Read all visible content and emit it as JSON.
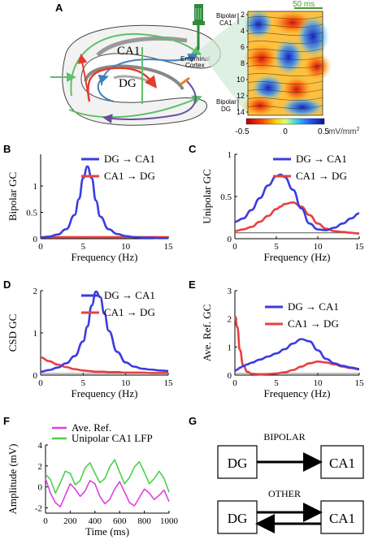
{
  "panels": {
    "A": {
      "letter": "A",
      "scale_bar": "50 ms",
      "label_ca1": "CA1",
      "label_dg": "DG",
      "label_entorhinal_1": "Entorhinal",
      "label_entorhinal_2": "Cortex",
      "label_bipolar_ca1_1": "Bipolar",
      "label_bipolar_ca1_2": "CA1",
      "label_bipolar_dg_1": "Bipolar",
      "label_bipolar_dg_2": "DG",
      "depth_ticks": [
        "2",
        "4",
        "6",
        "8",
        "10",
        "12",
        "14"
      ],
      "colorbar_ticks": [
        "-0.5",
        "0",
        "0.5"
      ],
      "colorbar_unit": "mV/mm",
      "colorbar_unit_sup": "2",
      "colors": {
        "green": "#5fbf6a",
        "blue": "#3f7fbf",
        "red": "#e43b2c",
        "purple": "#6b4e9b"
      }
    },
    "G": {
      "letter": "G",
      "bipolar_title": "BIPOLAR",
      "other_title": "OTHER",
      "box_left": "DG",
      "box_right": "CA1"
    },
    "F": {
      "letter": "F"
    }
  },
  "chart_data": [
    {
      "id": "B",
      "letter": "B",
      "type": "line",
      "title": "",
      "xlabel": "Frequency (Hz)",
      "ylabel": "Bipolar GC",
      "xlim": [
        0,
        15
      ],
      "ylim": [
        0,
        1.6
      ],
      "xticks": [
        "0",
        "5",
        "10",
        "15"
      ],
      "yticks": [
        "0",
        "0.5",
        "1"
      ],
      "x": [
        0,
        1,
        2,
        3,
        4,
        4.5,
        5,
        5.5,
        6,
        6.5,
        7,
        8,
        9,
        10,
        11,
        12,
        13,
        14,
        15
      ],
      "series": [
        {
          "name": "DG → CA1",
          "color": "#3c3ce0",
          "values": [
            0.02,
            0.04,
            0.08,
            0.18,
            0.45,
            0.75,
            1.15,
            1.37,
            1.15,
            0.72,
            0.42,
            0.18,
            0.09,
            0.05,
            0.03,
            0.02,
            0.02,
            0.01,
            0.01
          ]
        },
        {
          "name": "CA1 → DG",
          "color": "#e84040",
          "values": [
            0.03,
            0.03,
            0.03,
            0.03,
            0.03,
            0.03,
            0.03,
            0.03,
            0.03,
            0.03,
            0.03,
            0.03,
            0.03,
            0.03,
            0.03,
            0.03,
            0.03,
            0.03,
            0.03
          ]
        }
      ]
    },
    {
      "id": "C",
      "letter": "C",
      "type": "line",
      "title": "",
      "xlabel": "Frequency (Hz)",
      "ylabel": "Unipolar GC",
      "xlim": [
        0,
        15
      ],
      "ylim": [
        0,
        1
      ],
      "xticks": [
        "0",
        "5",
        "10",
        "15"
      ],
      "yticks": [
        "0",
        "0.5",
        "1"
      ],
      "baseline": 0.07,
      "x": [
        0,
        1,
        2,
        3,
        4,
        5,
        5.5,
        6,
        7,
        8,
        9,
        10,
        11,
        12,
        13,
        14,
        15
      ],
      "series": [
        {
          "name": "DG → CA1",
          "color": "#3c3ce0",
          "values": [
            0.2,
            0.24,
            0.34,
            0.48,
            0.63,
            0.74,
            0.76,
            0.73,
            0.58,
            0.36,
            0.18,
            0.11,
            0.1,
            0.13,
            0.18,
            0.24,
            0.3
          ]
        },
        {
          "name": "CA1 → DG",
          "color": "#e84040",
          "values": [
            0.09,
            0.11,
            0.14,
            0.2,
            0.27,
            0.35,
            0.38,
            0.41,
            0.43,
            0.38,
            0.28,
            0.18,
            0.12,
            0.09,
            0.08,
            0.07,
            0.06
          ]
        }
      ]
    },
    {
      "id": "D",
      "letter": "D",
      "type": "line",
      "title": "",
      "xlabel": "Frequency (Hz)",
      "ylabel": "CSD GC",
      "xlim": [
        0,
        15
      ],
      "ylim": [
        0,
        2
      ],
      "xticks": [
        "0",
        "5",
        "10",
        "15"
      ],
      "yticks": [
        "0",
        "1",
        "2"
      ],
      "x": [
        0,
        1,
        2,
        3,
        4,
        5,
        5.5,
        6,
        6.5,
        7,
        7.5,
        8,
        9,
        10,
        11,
        12,
        13,
        14,
        15
      ],
      "series": [
        {
          "name": "DG → CA1",
          "color": "#3c3ce0",
          "values": [
            0.08,
            0.12,
            0.18,
            0.28,
            0.45,
            0.8,
            1.15,
            1.65,
            1.98,
            1.85,
            1.45,
            1.05,
            0.55,
            0.3,
            0.2,
            0.15,
            0.13,
            0.11,
            0.1
          ]
        },
        {
          "name": "CA1 → DG",
          "color": "#e84040",
          "values": [
            0.42,
            0.33,
            0.25,
            0.19,
            0.14,
            0.11,
            0.1,
            0.09,
            0.08,
            0.08,
            0.08,
            0.07,
            0.07,
            0.06,
            0.06,
            0.06,
            0.05,
            0.05,
            0.05
          ]
        }
      ]
    },
    {
      "id": "E",
      "letter": "E",
      "type": "line",
      "title": "",
      "xlabel": "Frequency (Hz)",
      "ylabel": "Ave. Ref. GC",
      "xlim": [
        0,
        15
      ],
      "ylim": [
        0,
        3
      ],
      "xticks": [
        "0",
        "5",
        "10",
        "15"
      ],
      "yticks": [
        "0",
        "1",
        "2",
        "3"
      ],
      "x": [
        0,
        0.3,
        0.6,
        1,
        1.5,
        2,
        3,
        4,
        5,
        6,
        7,
        8,
        9,
        10,
        11,
        12,
        13,
        14,
        15
      ],
      "series": [
        {
          "name": "DG → CA1",
          "color": "#3c3ce0",
          "values": [
            0.15,
            0.2,
            0.26,
            0.32,
            0.38,
            0.44,
            0.55,
            0.66,
            0.77,
            0.92,
            1.12,
            1.28,
            1.2,
            0.88,
            0.58,
            0.42,
            0.33,
            0.27,
            0.22
          ]
        },
        {
          "name": "CA1 → DG",
          "color": "#e84040",
          "values": [
            2.1,
            1.7,
            0.9,
            0.35,
            0.12,
            0.05,
            0.03,
            0.04,
            0.06,
            0.1,
            0.18,
            0.3,
            0.42,
            0.48,
            0.45,
            0.38,
            0.3,
            0.25,
            0.2
          ]
        }
      ]
    },
    {
      "id": "F",
      "letter": "F",
      "type": "line",
      "title": "",
      "xlabel": "Time (ms)",
      "ylabel": "Amplitude (mV)",
      "xlim": [
        0,
        1000
      ],
      "ylim": [
        -2.5,
        4
      ],
      "xticks": [
        "0",
        "200",
        "400",
        "600",
        "800",
        "1000"
      ],
      "yticks": [
        "-2",
        "0",
        "2",
        "4"
      ],
      "x": [
        0,
        40,
        80,
        120,
        160,
        200,
        240,
        280,
        320,
        360,
        400,
        440,
        480,
        520,
        560,
        600,
        640,
        680,
        720,
        760,
        800,
        840,
        880,
        920,
        960,
        1000
      ],
      "series": [
        {
          "name": "Ave. Ref.",
          "color": "#e040e0",
          "values": [
            0.8,
            -0.6,
            -1.5,
            -1.9,
            -0.8,
            0.3,
            -0.2,
            -0.9,
            -0.4,
            0.6,
            0.3,
            -0.9,
            -1.6,
            -1.2,
            -0.2,
            0.5,
            -0.5,
            -1.5,
            -1.8,
            -1.0,
            -0.2,
            -0.6,
            -1.2,
            -0.8,
            -0.3,
            -1.4
          ]
        },
        {
          "name": "Unipolar CA1 LFP",
          "color": "#4cd04c",
          "values": [
            1.2,
            0.7,
            -0.6,
            0.4,
            1.5,
            1.3,
            0.2,
            0.6,
            1.8,
            2.3,
            1.3,
            0.4,
            0.8,
            1.9,
            2.6,
            1.4,
            0.3,
            0.9,
            1.9,
            2.4,
            1.4,
            0.3,
            0.8,
            1.5,
            0.8,
            -0.5
          ]
        }
      ]
    }
  ]
}
